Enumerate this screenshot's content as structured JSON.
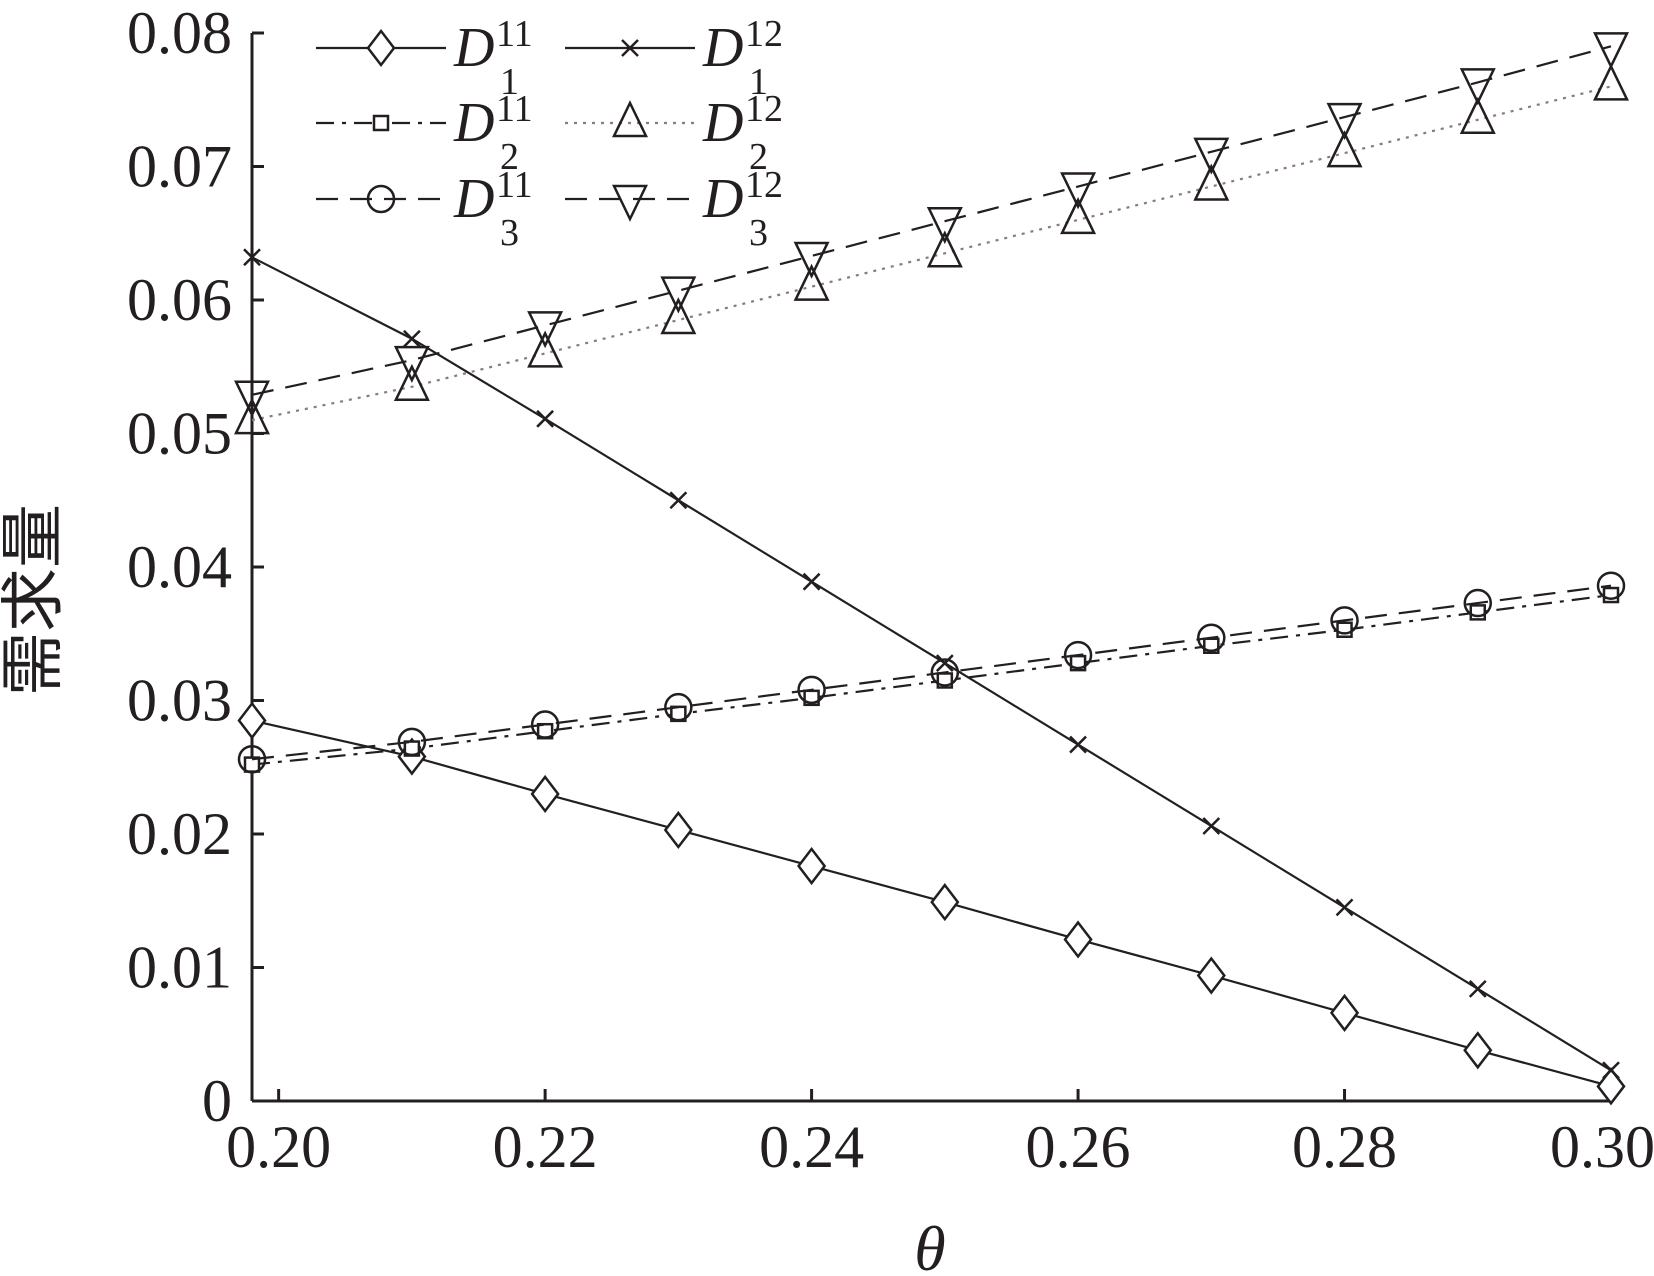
{
  "chart_data": {
    "type": "line",
    "xlabel": "θ",
    "ylabel": "需求量",
    "xlim": [
      0.198,
      0.3
    ],
    "ylim": [
      0,
      0.08
    ],
    "x_ticks": [
      "0.20",
      "0.22",
      "0.24",
      "0.26",
      "0.28",
      "0.30"
    ],
    "y_ticks": [
      "0",
      "0.01",
      "0.02",
      "0.03",
      "0.04",
      "0.05",
      "0.06",
      "0.07",
      "0.08"
    ],
    "grid": false,
    "legend_position": "top-left",
    "x": [
      0.198,
      0.21,
      0.22,
      0.23,
      0.24,
      0.25,
      0.26,
      0.27,
      0.28,
      0.29,
      0.3
    ],
    "series": [
      {
        "name": "D",
        "sub": "1",
        "sup": "11",
        "marker": "diamond",
        "dash": "solid",
        "color": "#231f20",
        "values": [
          0.0285,
          0.0258,
          0.023,
          0.0203,
          0.0176,
          0.0149,
          0.0121,
          0.0094,
          0.0066,
          0.0038,
          0.0011
        ]
      },
      {
        "name": "D",
        "sub": "1",
        "sup": "12",
        "marker": "x",
        "dash": "solid",
        "color": "#231f20",
        "values": [
          0.0632,
          0.0571,
          0.0511,
          0.045,
          0.0389,
          0.0328,
          0.0267,
          0.0206,
          0.0145,
          0.0084,
          0.0023
        ]
      },
      {
        "name": "D",
        "sub": "2",
        "sup": "11",
        "marker": "square",
        "dash": "dashdot",
        "color": "#231f20",
        "values": [
          0.0252,
          0.0264,
          0.0277,
          0.029,
          0.0302,
          0.0315,
          0.0328,
          0.0341,
          0.0353,
          0.0366,
          0.0379
        ]
      },
      {
        "name": "D",
        "sub": "2",
        "sup": "12",
        "marker": "triangle-up",
        "dash": "dotted",
        "color": "#8b7b70",
        "values": [
          0.051,
          0.0535,
          0.056,
          0.0585,
          0.061,
          0.0635,
          0.066,
          0.0685,
          0.071,
          0.0735,
          0.076
        ]
      },
      {
        "name": "D",
        "sub": "3",
        "sup": "11",
        "marker": "circle",
        "dash": "dashed",
        "color": "#231f20",
        "values": [
          0.0256,
          0.0269,
          0.0282,
          0.0295,
          0.0308,
          0.0321,
          0.0334,
          0.0347,
          0.036,
          0.0373,
          0.0386
        ]
      },
      {
        "name": "D",
        "sub": "3",
        "sup": "12",
        "marker": "triangle-down",
        "dash": "dashed",
        "color": "#231f20",
        "values": [
          0.0529,
          0.0555,
          0.0581,
          0.0607,
          0.0633,
          0.0659,
          0.0685,
          0.0711,
          0.0737,
          0.0763,
          0.079
        ]
      }
    ]
  }
}
